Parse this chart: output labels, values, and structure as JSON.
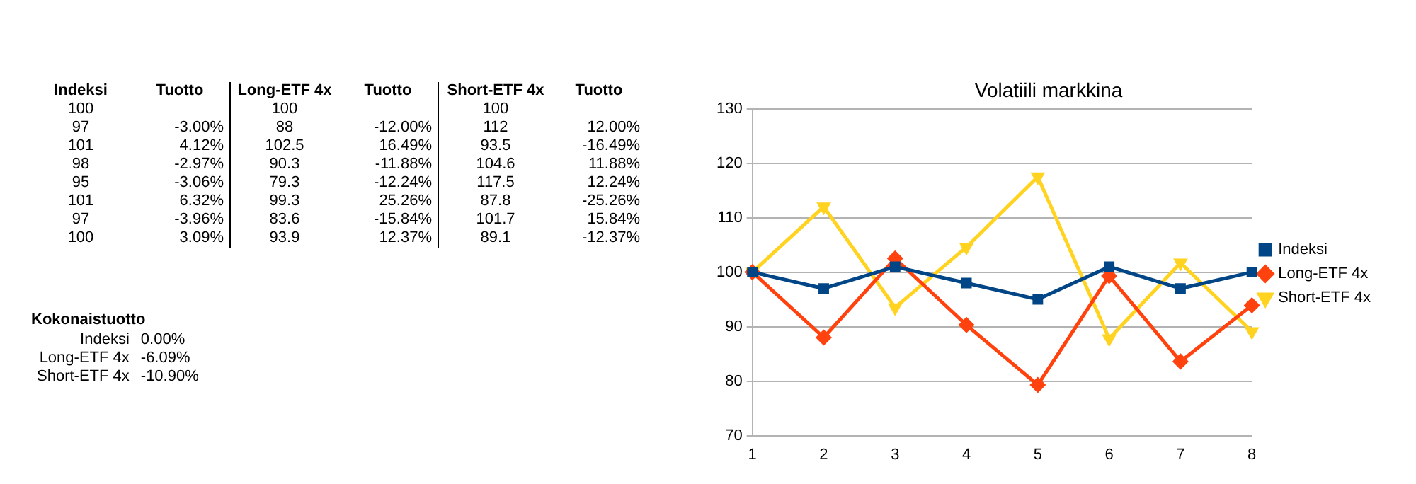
{
  "chart_data": [
    {
      "type": "other",
      "annotations": [
        "Indeksi",
        "Tuotto",
        "Long-ETF 4x",
        "Tuotto",
        "Short-ETF 4x",
        "Tuotto",
        "100",
        null,
        "100",
        null,
        "100",
        null,
        "97",
        "-3.00%",
        "88",
        "-12.00%",
        "112",
        "12.00%",
        "101",
        "4.12%",
        "102.5",
        "16.49%",
        "93.5",
        "-16.49%",
        "98",
        "-2.97%",
        "90.3",
        "-11.88%",
        "104.6",
        "11.88%",
        "95",
        "-3.06%",
        "79.3",
        "-12.24%",
        "117.5",
        "12.24%",
        "101",
        "6.32%",
        "99.3",
        "25.26%",
        "87.8",
        "-25.26%",
        "97",
        "-3.96%",
        "83.6",
        "-15.84%",
        "101.7",
        "15.84%",
        "100",
        "3.09%",
        "93.9",
        "12.37%",
        "89.1",
        "-12.37%"
      ]
    },
    {
      "type": "other",
      "title": "Kokonaistuotto",
      "annotations": [
        "Indeksi",
        "0.00%",
        "Long-ETF 4x",
        "-6.09%",
        "Short-ETF 4x",
        "-10.90%"
      ]
    },
    {
      "type": "line",
      "title": "Volatiili markkina",
      "categories": [
        "1",
        "2",
        "3",
        "4",
        "5",
        "6",
        "7",
        "8"
      ],
      "ylim": [
        70,
        130
      ],
      "yticks": [
        70,
        80,
        90,
        100,
        110,
        120,
        130
      ],
      "grid": "y",
      "legend": "right",
      "series": [
        {
          "name": "Indeksi",
          "color": "#004586",
          "marker": "square",
          "values": [
            100,
            97,
            101,
            98,
            95,
            101,
            97,
            100
          ]
        },
        {
          "name": "Long-ETF 4x",
          "color": "#ff420e",
          "marker": "diamond",
          "values": [
            100,
            88,
            102.5,
            90.3,
            79.3,
            99.3,
            83.6,
            93.9
          ]
        },
        {
          "name": "Short-ETF 4x",
          "color": "#ffd320",
          "marker": "triangle",
          "values": [
            100,
            112,
            93.5,
            104.6,
            117.5,
            87.8,
            101.7,
            89.1
          ]
        }
      ]
    }
  ]
}
